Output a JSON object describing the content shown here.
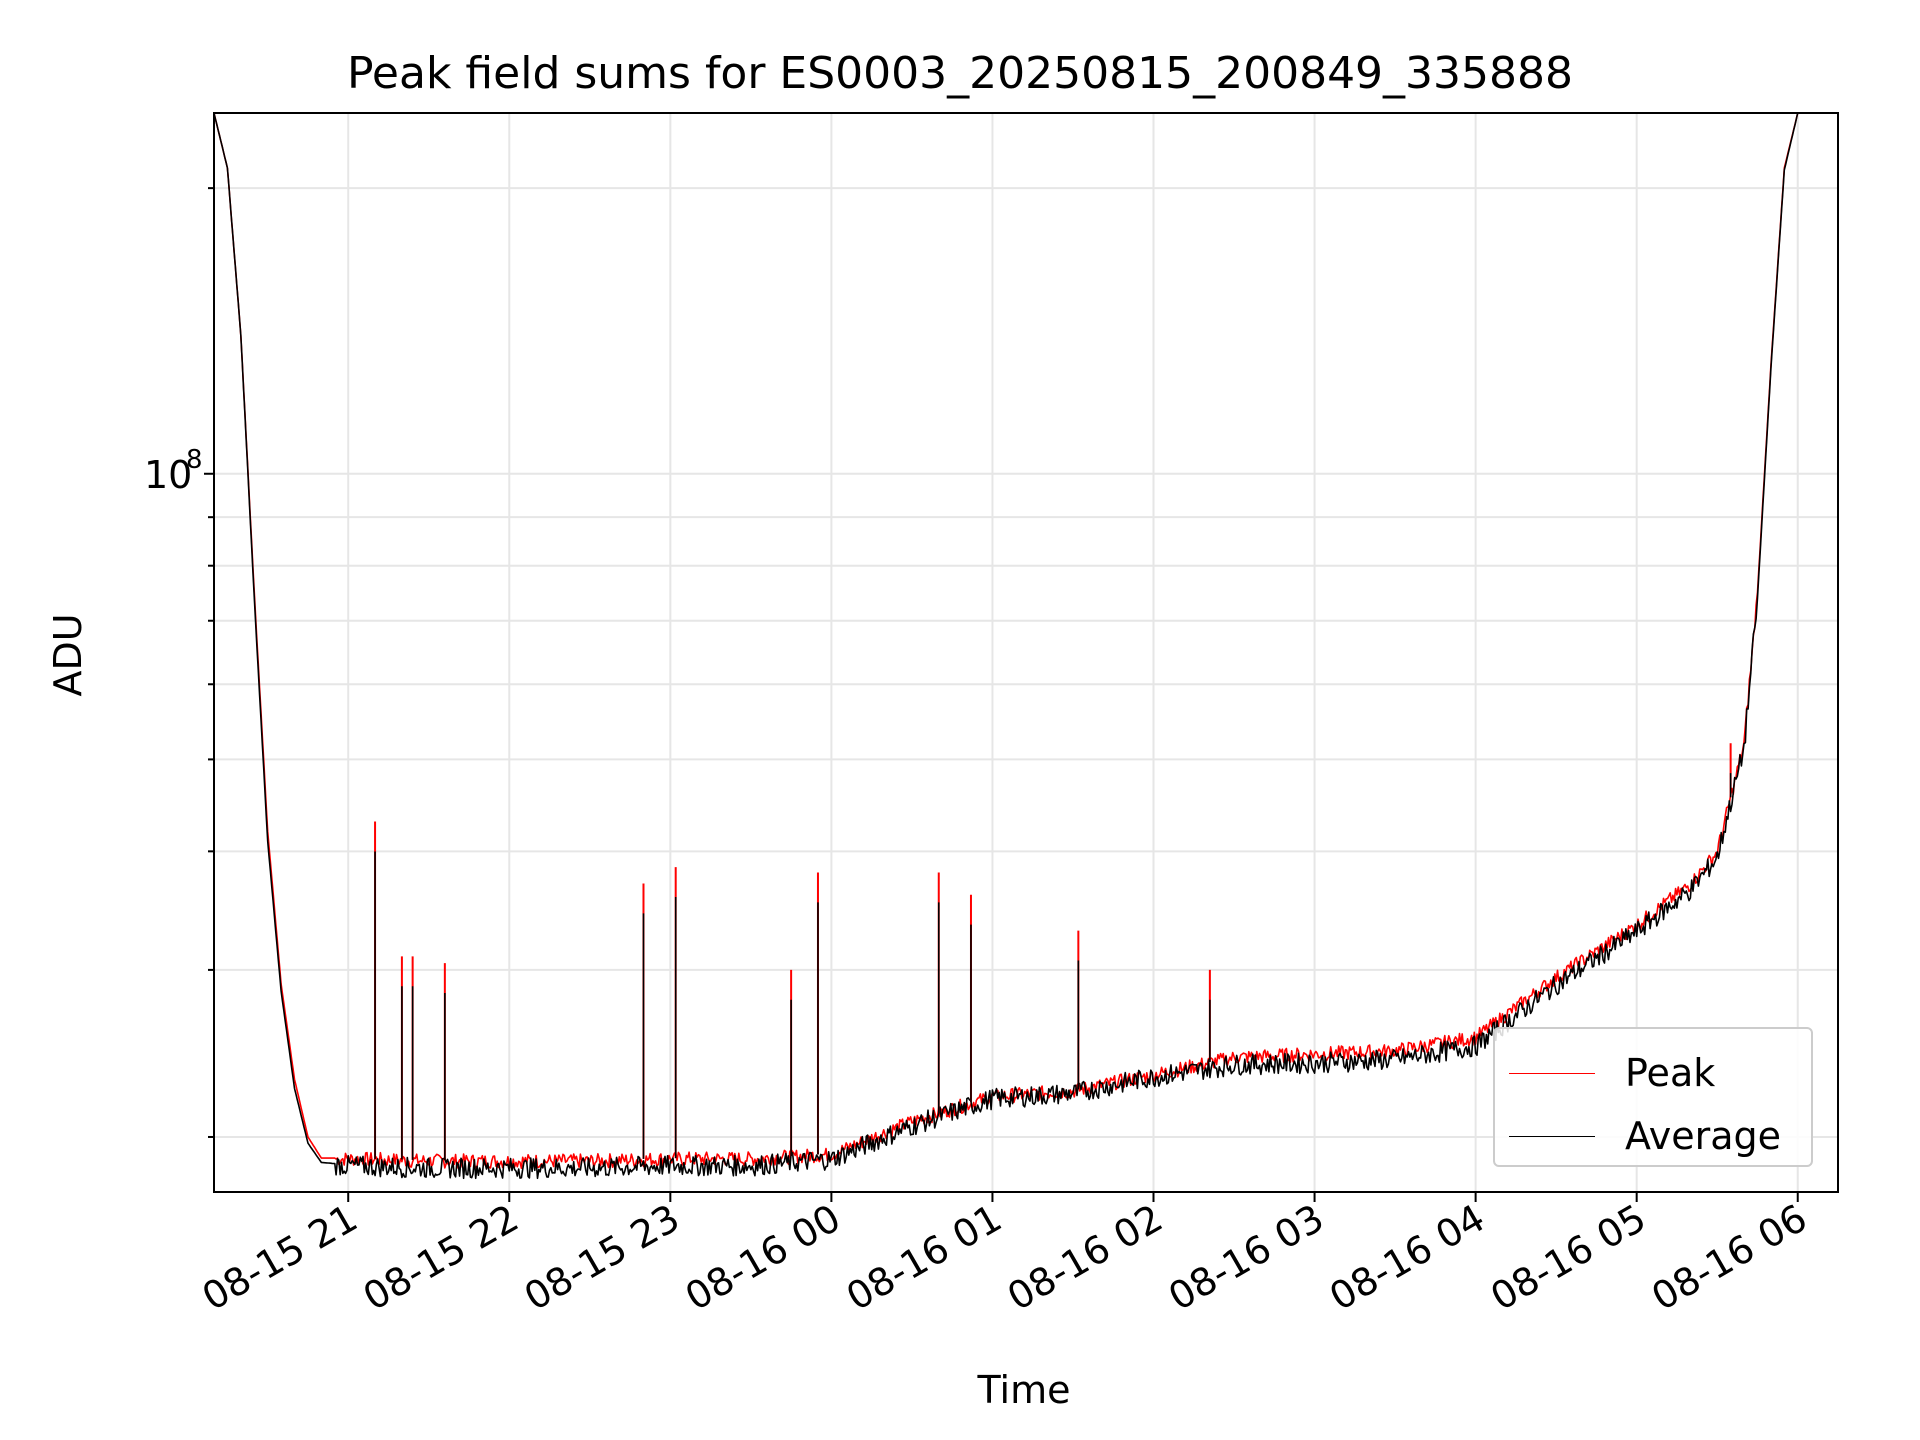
{
  "chart_data": {
    "type": "line",
    "title": "Peak field sums for ES0003_20250815_200849_335888",
    "xlabel": "Time",
    "ylabel": "ADU",
    "yscale": "log",
    "ylim": [
      17500000,
      240000000
    ],
    "xlim": [
      "08-15 20:10",
      "08-16 06:15"
    ],
    "grid": true,
    "legend_position": "lower-right",
    "x_ticks": [
      "08-15 21",
      "08-15 22",
      "08-15 23",
      "08-16 00",
      "08-16 01",
      "08-16 02",
      "08-16 03",
      "08-16 04",
      "08-16 05",
      "08-16 06"
    ],
    "y_tick_label": {
      "base": "10",
      "exponent": "8"
    },
    "x": [
      "08-15 20:10",
      "08-15 20:15",
      "08-15 20:20",
      "08-15 20:25",
      "08-15 20:30",
      "08-15 20:35",
      "08-15 20:40",
      "08-15 20:45",
      "08-15 20:50",
      "08-15 21:00",
      "08-15 21:30",
      "08-15 22:00",
      "08-15 22:30",
      "08-15 23:00",
      "08-15 23:30",
      "08-16 00:00",
      "08-16 00:30",
      "08-16 01:00",
      "08-16 01:30",
      "08-16 02:00",
      "08-16 02:30",
      "08-16 03:00",
      "08-16 03:30",
      "08-16 04:00",
      "08-16 04:30",
      "08-16 05:00",
      "08-16 05:20",
      "08-16 05:30",
      "08-16 05:40",
      "08-16 05:45",
      "08-16 05:50",
      "08-16 05:55",
      "08-16 06:00"
    ],
    "series": [
      {
        "name": "Peak",
        "color": "#ff0000",
        "values": [
          240000000,
          210000000,
          140000000,
          75000000,
          42000000,
          29000000,
          23000000,
          20000000,
          19000000,
          19000000,
          18900000,
          18900000,
          18900000,
          19000000,
          19000000,
          19200000,
          20800000,
          22100000,
          22400000,
          23300000,
          24300000,
          24500000,
          24700000,
          25500000,
          29500000,
          33500000,
          37000000,
          40000000,
          52000000,
          75000000,
          130000000,
          210000000,
          240000000
        ]
      },
      {
        "name": "Average",
        "color": "#000000",
        "values": [
          240000000,
          210000000,
          140000000,
          74000000,
          41000000,
          28500000,
          22500000,
          19700000,
          18800000,
          18700000,
          18600000,
          18600000,
          18600000,
          18700000,
          18700000,
          19000000,
          20600000,
          22000000,
          22300000,
          23200000,
          23900000,
          24000000,
          24200000,
          25000000,
          29000000,
          33000000,
          36500000,
          39500000,
          51500000,
          74000000,
          129000000,
          209000000,
          240000000
        ]
      }
    ],
    "spikes": [
      {
        "series": "Peak",
        "x": "08-15 21:10",
        "value": 43000000
      },
      {
        "series": "Peak",
        "x": "08-15 21:20",
        "value": 31000000
      },
      {
        "series": "Peak",
        "x": "08-15 21:24",
        "value": 31000000
      },
      {
        "series": "Peak",
        "x": "08-15 21:36",
        "value": 30500000
      },
      {
        "series": "Peak",
        "x": "08-15 22:50",
        "value": 37000000
      },
      {
        "series": "Peak",
        "x": "08-15 23:02",
        "value": 38500000
      },
      {
        "series": "Peak",
        "x": "08-15 23:45",
        "value": 30000000
      },
      {
        "series": "Peak",
        "x": "08-15 23:55",
        "value": 38000000
      },
      {
        "series": "Peak",
        "x": "08-16 00:40",
        "value": 38000000
      },
      {
        "series": "Peak",
        "x": "08-16 00:52",
        "value": 36000000
      },
      {
        "series": "Peak",
        "x": "08-16 01:32",
        "value": 33000000
      },
      {
        "series": "Peak",
        "x": "08-16 02:21",
        "value": 30000000
      },
      {
        "series": "Peak",
        "x": "08-16 05:35",
        "value": 52000000
      }
    ]
  },
  "legend": {
    "peak_label": "Peak",
    "average_label": "Average"
  },
  "labels": {
    "title": "Peak field sums for ES0003_20250815_200849_335888",
    "xlabel": "Time",
    "ylabel": "ADU"
  }
}
